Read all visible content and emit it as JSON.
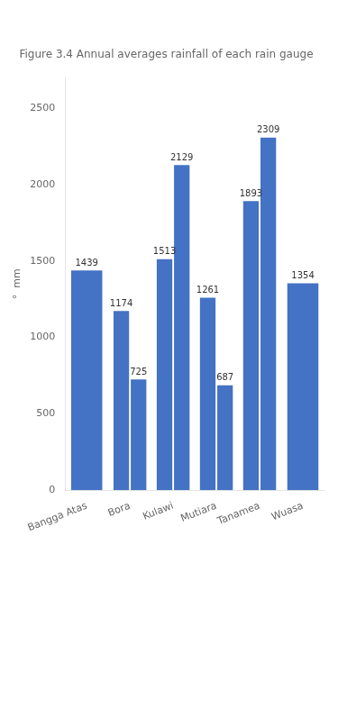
{
  "chart_data": {
    "type": "bar",
    "title": "Figure 3.4 Annual averages rainfall of each rain gauge",
    "ylabel": "°  mm",
    "categories": [
      "Bangga Atas",
      "Bora",
      "Kulawi",
      "Mutiara",
      "Tanamea",
      "Wuasa"
    ],
    "series": [
      {
        "color": "#4472C4",
        "values": [
          1439,
          1174,
          1513,
          1261,
          1893,
          1354
        ]
      },
      {
        "color": "#4472C4",
        "values": [
          null,
          725,
          2129,
          687,
          2309,
          null
        ]
      }
    ],
    "ylim": [
      0,
      2700
    ],
    "yticks": [
      0,
      500,
      1000,
      1500,
      2000,
      2500
    ],
    "grid": false,
    "data_labels": true
  }
}
